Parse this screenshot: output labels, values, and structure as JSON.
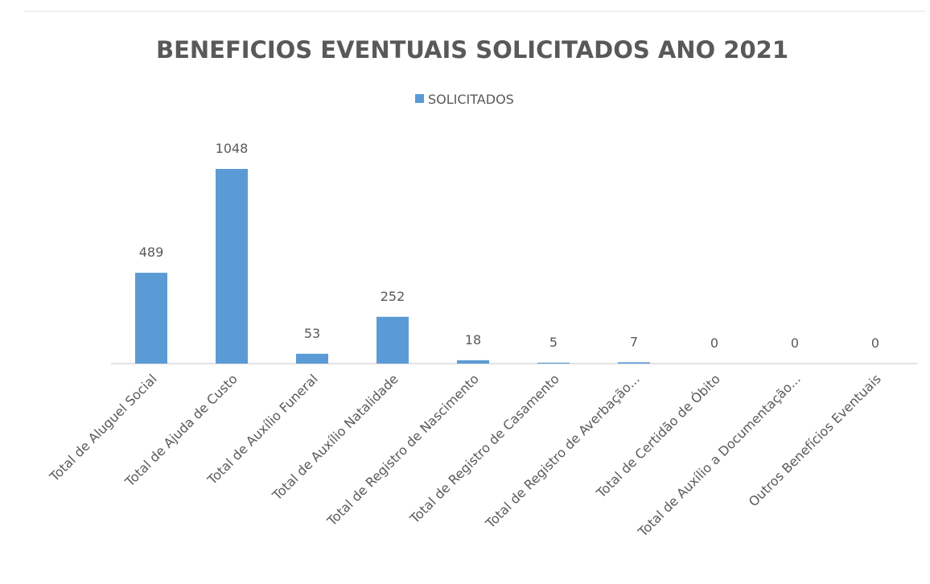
{
  "chart_data": {
    "type": "bar",
    "title": "BENEFICIOS EVENTUAIS SOLICITADOS ANO 2021",
    "categories": [
      "Total de Aluguel Social",
      "Total de Ajuda de Custo",
      "Total de Auxílio Funeral",
      "Total de Auxílio Natalidade",
      "Total de Registro de Nascimento",
      "Total de Registro de Casamento",
      "Total de Registro de Averbação...",
      "Total de Certidão de Óbito",
      "Total de Auxílio a Documentação...",
      "Outros Benefícios Eventuais"
    ],
    "series": [
      {
        "name": "SOLICITADOS",
        "color": "#5b9bd5",
        "values": [
          489,
          1048,
          53,
          252,
          18,
          5,
          7,
          0,
          0,
          0
        ]
      }
    ],
    "legend": "top"
  }
}
